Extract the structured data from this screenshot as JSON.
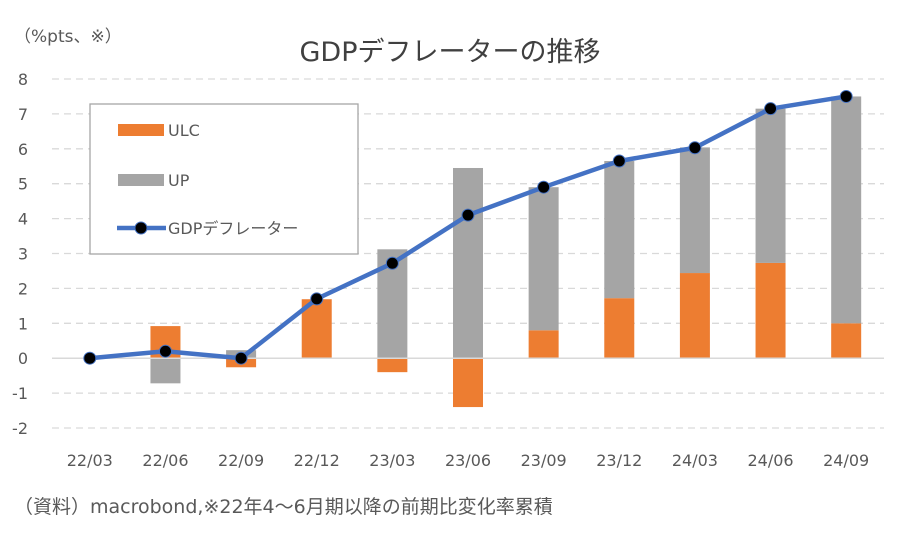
{
  "chart_data": {
    "type": "bar",
    "title": "GDPデフレーターの推移",
    "ylabel": "（%pts、※）",
    "xlabel": "",
    "ylim": [
      -2,
      8
    ],
    "yticks": [
      8,
      7,
      6,
      5,
      4,
      3,
      2,
      1,
      0,
      -1,
      -2
    ],
    "grid": true,
    "legend_position": "top-left",
    "categories": [
      "22/03",
      "22/06",
      "22/09",
      "22/12",
      "23/03",
      "23/06",
      "23/09",
      "23/12",
      "24/03",
      "24/06",
      "24/09"
    ],
    "series": [
      {
        "name": "ULC",
        "type": "bar",
        "stacked": true,
        "color": "#ED7D31",
        "values": [
          0,
          0.92,
          -0.26,
          1.69,
          -0.4,
          -1.4,
          0.8,
          1.72,
          2.44,
          2.73,
          1.0
        ]
      },
      {
        "name": "UP",
        "type": "bar",
        "stacked": true,
        "color": "#A5A5A5",
        "values": [
          0,
          -0.72,
          0.23,
          0.0,
          3.12,
          5.45,
          4.1,
          3.93,
          3.6,
          4.42,
          6.5
        ]
      },
      {
        "name": "GDPデフレーター",
        "type": "line",
        "color": "#4472C4",
        "marker_color": "#000000",
        "values": [
          0,
          0.2,
          0,
          1.7,
          2.72,
          4.1,
          4.9,
          5.65,
          6.03,
          7.15,
          7.5
        ]
      }
    ],
    "source": "（資料）macrobond,※22年4～6月期以降の前期比変化率累積"
  }
}
